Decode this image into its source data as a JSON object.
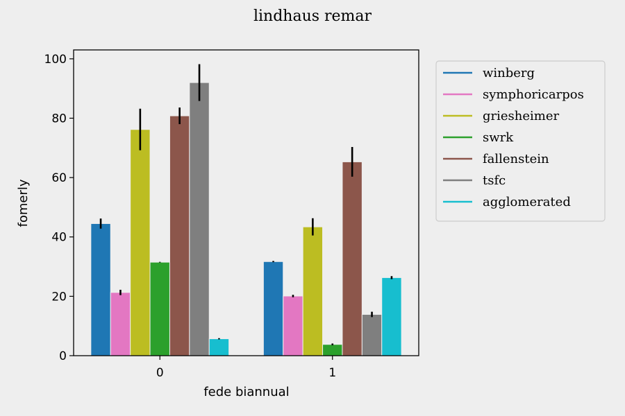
{
  "chart_data": {
    "type": "bar",
    "title": "lindhaus remar",
    "xlabel": "fede biannual",
    "ylabel": "fomerly",
    "categories": [
      "0",
      "1"
    ],
    "ylim": [
      0,
      103
    ],
    "yticks": [
      0,
      20,
      40,
      60,
      80,
      100
    ],
    "grid": false,
    "legend_position": "outside-right",
    "series": [
      {
        "name": "winberg",
        "color": "#1f77b4",
        "values": [
          44.5,
          31.7
        ],
        "error": [
          [
            42.8,
            46.2
          ],
          [
            31.5,
            31.9
          ]
        ]
      },
      {
        "name": "symphoricarpos",
        "color": "#e377c2",
        "values": [
          21.3,
          20.1
        ],
        "error": [
          [
            20.4,
            22.2
          ],
          [
            19.7,
            20.5
          ]
        ]
      },
      {
        "name": "griesheimer",
        "color": "#bcbd22",
        "values": [
          76.2,
          43.4
        ],
        "error": [
          [
            69.2,
            83.2
          ],
          [
            40.5,
            46.3
          ]
        ]
      },
      {
        "name": "swrk",
        "color": "#2ca02c",
        "values": [
          31.5,
          3.8
        ],
        "error": [
          [
            31.4,
            31.6
          ],
          [
            3.5,
            4.1
          ]
        ]
      },
      {
        "name": "fallenstein",
        "color": "#8c564b",
        "values": [
          80.8,
          65.3
        ],
        "error": [
          [
            78.0,
            83.6
          ],
          [
            60.3,
            70.3
          ]
        ]
      },
      {
        "name": "tsfc",
        "color": "#7f7f7f",
        "values": [
          92.0,
          13.9
        ],
        "error": [
          [
            85.8,
            98.2
          ],
          [
            13.0,
            14.8
          ]
        ]
      },
      {
        "name": "agglomerated",
        "color": "#17becf",
        "values": [
          5.7,
          26.3
        ],
        "error": [
          [
            5.5,
            5.9
          ],
          [
            25.8,
            26.8
          ]
        ]
      }
    ]
  }
}
